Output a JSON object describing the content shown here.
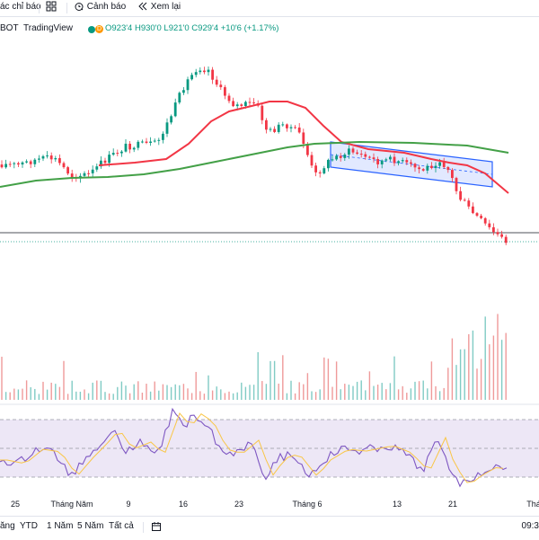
{
  "toolbar": {
    "alert_label": "Cảnh báo",
    "replay_label": "Xem lại",
    "indicators_label": "ác chỉ báo"
  },
  "legend": {
    "symbol": "BOT",
    "provider": "TradingView",
    "badge_letter": "D",
    "ohlc": "O923'4 H930'0 L921'0 C929'4 +10'6 (+1.17%)"
  },
  "chart_data": {
    "type": "candlestick",
    "price_scale_visible": false,
    "last_price_line": true,
    "series_colors": {
      "up": "#089981",
      "down": "#f23645",
      "ma_fast": "#f23645",
      "ma_slow": "#43a047",
      "rsi": "#7e57c2",
      "rsi_ma": "#f9c646",
      "channel": "#2962ff"
    },
    "channel": {
      "color": "#2962ff",
      "fill": "#dbe3ff"
    },
    "rsi_band": {
      "fill": "#ede7f6",
      "levels": [
        "upper",
        "middle",
        "lower"
      ]
    },
    "volume_visible": true
  },
  "xaxis": {
    "labels": [
      "25",
      "Tháng Năm",
      "9",
      "16",
      "23",
      "Tháng 6",
      "13",
      "21",
      "Thá"
    ]
  },
  "bottombar": {
    "ranges": [
      "ăng",
      "YTD",
      "1 Năm",
      "5 Năm",
      "Tất cả"
    ],
    "clock": "09:3"
  }
}
